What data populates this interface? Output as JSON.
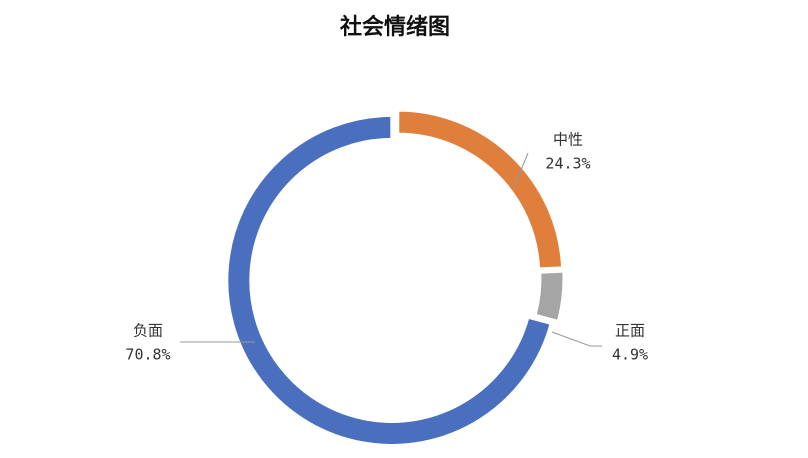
{
  "chart_data": {
    "type": "donut",
    "title": "社会情绪图",
    "categories": [
      "中性",
      "正面",
      "负面"
    ],
    "values": [
      24.3,
      4.9,
      70.8
    ],
    "value_labels": [
      "24.3%",
      "4.9%",
      "70.8%"
    ],
    "colors": [
      "#e07f3c",
      "#a5a5a5",
      "#4a6fbf"
    ]
  }
}
